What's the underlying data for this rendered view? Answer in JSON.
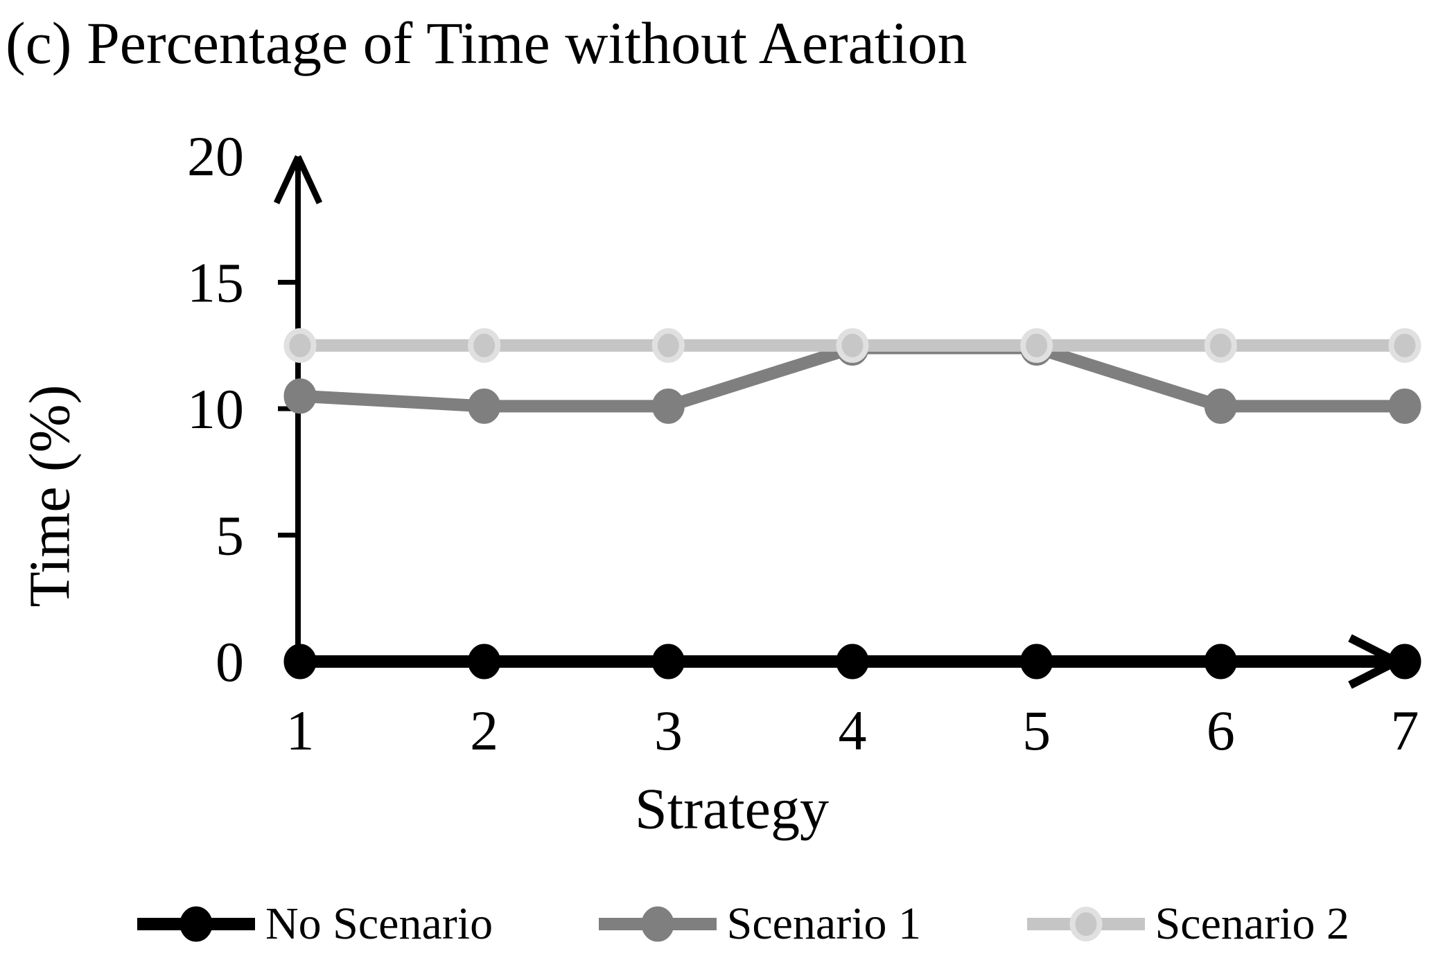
{
  "figure": {
    "title": "(c) Percentage of Time without Aeration"
  },
  "chart_data": {
    "type": "line",
    "title": "(c) Percentage of Time without Aeration",
    "xlabel": "Strategy",
    "ylabel": "Time (%)",
    "x": [
      1,
      2,
      3,
      4,
      5,
      6,
      7
    ],
    "x_tick_labels": [
      "1",
      "2",
      "3",
      "4",
      "5",
      "6",
      "7"
    ],
    "ylim": [
      0,
      20
    ],
    "y_ticks": [
      0,
      5,
      10,
      15,
      20
    ],
    "grid": false,
    "legend_position": "bottom",
    "series": [
      {
        "name": "No Scenario",
        "color": "#000000",
        "marker_fill": "#000000",
        "marker_ring": "#000000",
        "values": [
          0,
          0,
          0,
          0,
          0,
          0,
          0
        ]
      },
      {
        "name": "Scenario 1",
        "color": "#7f7f7f",
        "marker_fill": "#7f7f7f",
        "marker_ring": "#7f7f7f",
        "values": [
          10.5,
          10.1,
          10.1,
          12.4,
          12.4,
          10.1,
          10.1
        ]
      },
      {
        "name": "Scenario 2",
        "color": "#c5c5c5",
        "marker_fill": "#c7c7c7",
        "marker_ring": "#e0e0e0",
        "values": [
          12.5,
          12.5,
          12.5,
          12.5,
          12.5,
          12.5,
          12.5
        ]
      }
    ]
  }
}
